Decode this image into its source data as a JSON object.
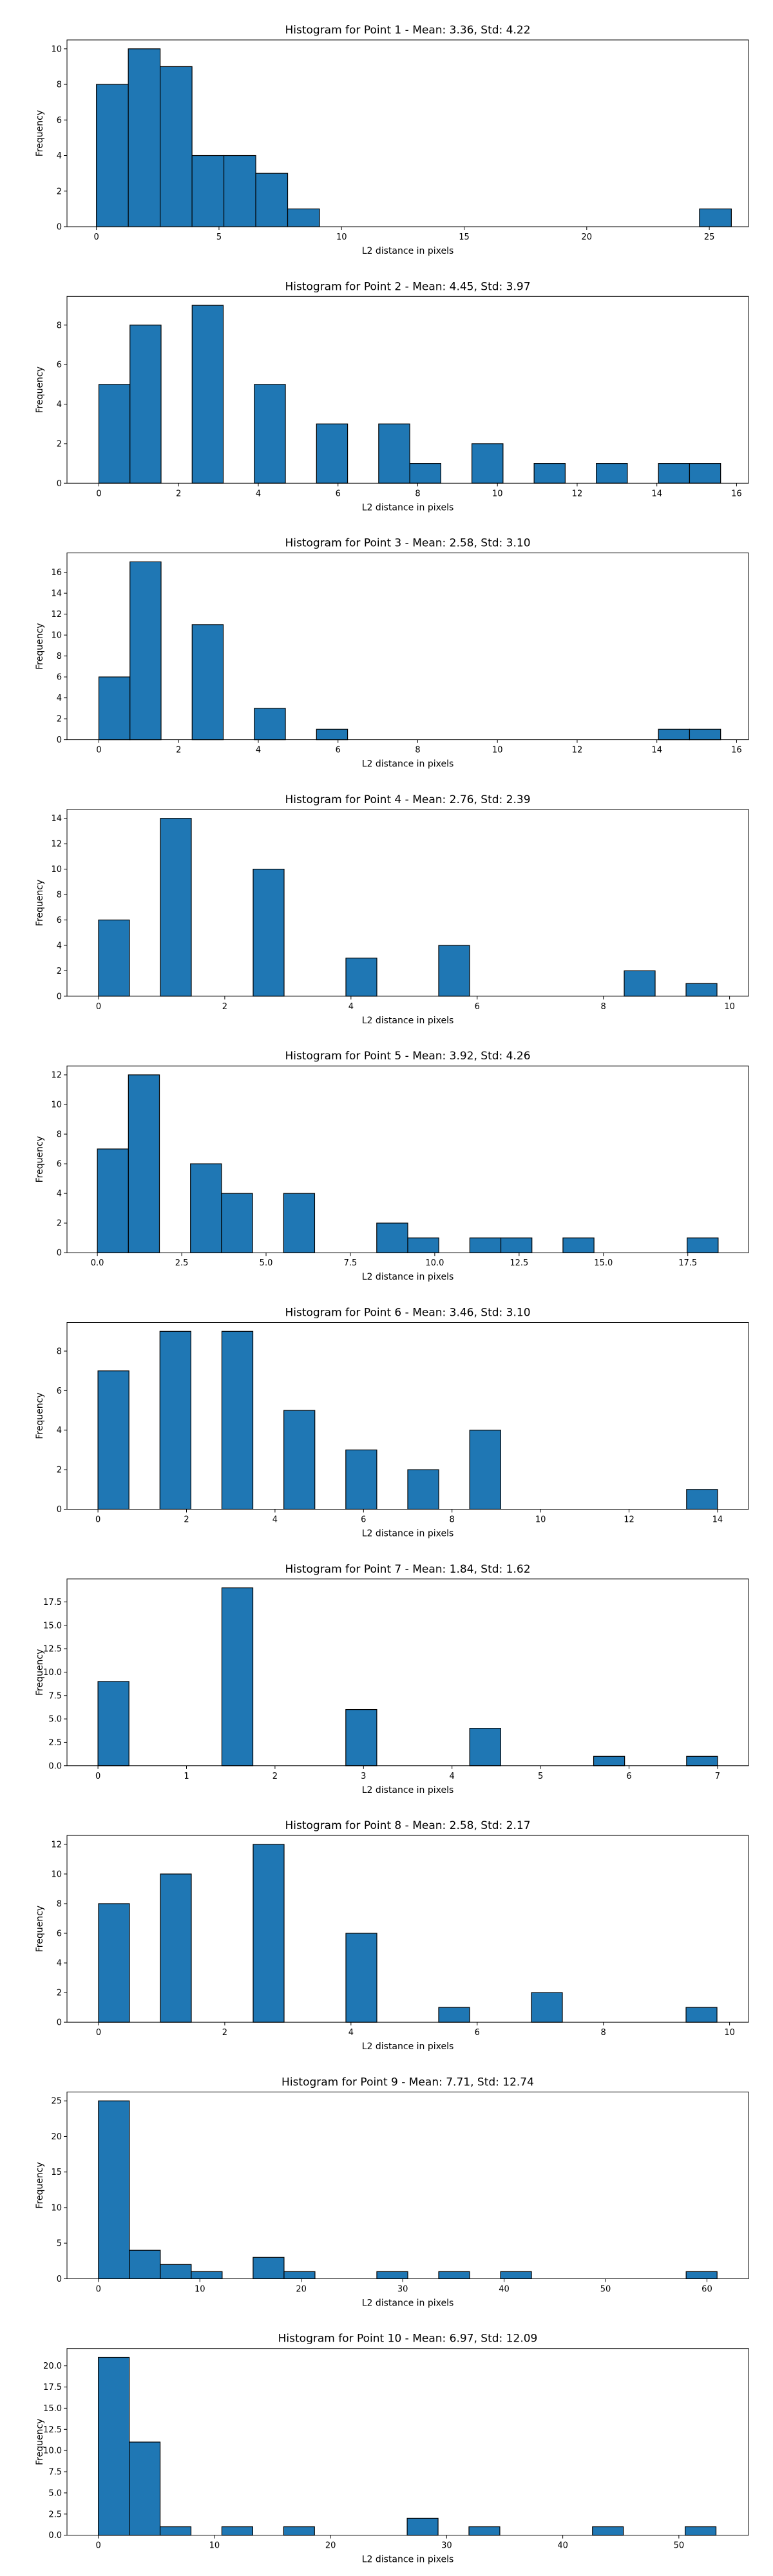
{
  "chart_data": [
    {
      "type": "bar",
      "title": "Histogram for Point 1 - Mean: 3.36, Std: 4.22",
      "xlabel": "L2 distance in pixels",
      "ylabel": "Frequency",
      "xlim": [
        -1.2,
        26.6
      ],
      "ylim": [
        0,
        10.5
      ],
      "xticks": [
        0,
        5,
        10,
        15,
        20,
        25
      ],
      "xtick_labels": [
        "0",
        "5",
        "10",
        "15",
        "20",
        "25"
      ],
      "yticks": [
        0,
        2,
        4,
        6,
        8,
        10
      ],
      "ytick_labels": [
        "0",
        "2",
        "4",
        "6",
        "8",
        "10"
      ],
      "bins": [
        {
          "x0": 0.0,
          "x1": 1.3,
          "value": 8
        },
        {
          "x0": 1.3,
          "x1": 2.6,
          "value": 10
        },
        {
          "x0": 2.6,
          "x1": 3.9,
          "value": 9
        },
        {
          "x0": 3.9,
          "x1": 5.2,
          "value": 4
        },
        {
          "x0": 5.2,
          "x1": 6.5,
          "value": 4
        },
        {
          "x0": 6.5,
          "x1": 7.8,
          "value": 3
        },
        {
          "x0": 7.8,
          "x1": 9.1,
          "value": 1
        },
        {
          "x0": 24.6,
          "x1": 25.9,
          "value": 1
        }
      ]
    },
    {
      "type": "bar",
      "title": "Histogram for Point 2 - Mean: 4.45, Std: 3.97",
      "xlabel": "L2 distance in pixels",
      "ylabel": "Frequency",
      "xlim": [
        -0.8,
        16.3
      ],
      "ylim": [
        0,
        9.45
      ],
      "xticks": [
        0,
        2,
        4,
        6,
        8,
        10,
        12,
        14,
        16
      ],
      "xtick_labels": [
        "0",
        "2",
        "4",
        "6",
        "8",
        "10",
        "12",
        "14",
        "16"
      ],
      "yticks": [
        0,
        2,
        4,
        6,
        8
      ],
      "ytick_labels": [
        "0",
        "2",
        "4",
        "6",
        "8"
      ],
      "bins": [
        {
          "x0": 0.0,
          "x1": 0.78,
          "value": 5
        },
        {
          "x0": 0.78,
          "x1": 1.56,
          "value": 8
        },
        {
          "x0": 2.34,
          "x1": 3.12,
          "value": 9
        },
        {
          "x0": 3.9,
          "x1": 4.68,
          "value": 5
        },
        {
          "x0": 5.46,
          "x1": 6.24,
          "value": 3
        },
        {
          "x0": 7.02,
          "x1": 7.8,
          "value": 3
        },
        {
          "x0": 7.8,
          "x1": 8.58,
          "value": 1
        },
        {
          "x0": 9.36,
          "x1": 10.14,
          "value": 2
        },
        {
          "x0": 10.92,
          "x1": 11.7,
          "value": 1
        },
        {
          "x0": 12.48,
          "x1": 13.26,
          "value": 1
        },
        {
          "x0": 14.04,
          "x1": 14.82,
          "value": 1
        },
        {
          "x0": 14.82,
          "x1": 15.6,
          "value": 1
        }
      ]
    },
    {
      "type": "bar",
      "title": "Histogram for Point 3 - Mean: 2.58, Std: 3.10",
      "xlabel": "L2 distance in pixels",
      "ylabel": "Frequency",
      "xlim": [
        -0.8,
        16.3
      ],
      "ylim": [
        0,
        17.85
      ],
      "xticks": [
        0,
        2,
        4,
        6,
        8,
        10,
        12,
        14,
        16
      ],
      "xtick_labels": [
        "0",
        "2",
        "4",
        "6",
        "8",
        "10",
        "12",
        "14",
        "16"
      ],
      "yticks": [
        0,
        2,
        4,
        6,
        8,
        10,
        12,
        14,
        16
      ],
      "ytick_labels": [
        "0",
        "2",
        "4",
        "6",
        "8",
        "10",
        "12",
        "14",
        "16"
      ],
      "bins": [
        {
          "x0": 0.0,
          "x1": 0.78,
          "value": 6
        },
        {
          "x0": 0.78,
          "x1": 1.56,
          "value": 17
        },
        {
          "x0": 2.34,
          "x1": 3.12,
          "value": 11
        },
        {
          "x0": 3.9,
          "x1": 4.68,
          "value": 3
        },
        {
          "x0": 5.46,
          "x1": 6.24,
          "value": 1
        },
        {
          "x0": 14.04,
          "x1": 14.82,
          "value": 1
        },
        {
          "x0": 14.82,
          "x1": 15.6,
          "value": 1
        }
      ]
    },
    {
      "type": "bar",
      "title": "Histogram for Point 4 - Mean: 2.76, Std: 2.39",
      "xlabel": "L2 distance in pixels",
      "ylabel": "Frequency",
      "xlim": [
        -0.5,
        10.3
      ],
      "ylim": [
        0,
        14.7
      ],
      "xticks": [
        0,
        2,
        4,
        6,
        8,
        10
      ],
      "xtick_labels": [
        "0",
        "2",
        "4",
        "6",
        "8",
        "10"
      ],
      "yticks": [
        0,
        2,
        4,
        6,
        8,
        10,
        12,
        14
      ],
      "ytick_labels": [
        "0",
        "2",
        "4",
        "6",
        "8",
        "10",
        "12",
        "14"
      ],
      "bins": [
        {
          "x0": 0.0,
          "x1": 0.49,
          "value": 6
        },
        {
          "x0": 0.98,
          "x1": 1.47,
          "value": 14
        },
        {
          "x0": 2.45,
          "x1": 2.94,
          "value": 10
        },
        {
          "x0": 3.92,
          "x1": 4.41,
          "value": 3
        },
        {
          "x0": 5.39,
          "x1": 5.88,
          "value": 4
        },
        {
          "x0": 8.33,
          "x1": 8.82,
          "value": 2
        },
        {
          "x0": 9.31,
          "x1": 9.8,
          "value": 1
        }
      ]
    },
    {
      "type": "bar",
      "title": "Histogram for Point 5 - Mean: 3.92, Std: 4.26",
      "xlabel": "L2 distance in pixels",
      "ylabel": "Frequency",
      "xlim": [
        -0.9,
        19.3
      ],
      "ylim": [
        0,
        12.6
      ],
      "xticks": [
        0,
        2.5,
        5,
        7.5,
        10,
        12.5,
        15,
        17.5
      ],
      "xtick_labels": [
        "0.0",
        "2.5",
        "5.0",
        "7.5",
        "10.0",
        "12.5",
        "15.0",
        "17.5"
      ],
      "yticks": [
        0,
        2,
        4,
        6,
        8,
        10,
        12
      ],
      "ytick_labels": [
        "0",
        "2",
        "4",
        "6",
        "8",
        "10",
        "12"
      ],
      "bins": [
        {
          "x0": 0.0,
          "x1": 0.92,
          "value": 7
        },
        {
          "x0": 0.92,
          "x1": 1.84,
          "value": 12
        },
        {
          "x0": 2.76,
          "x1": 3.68,
          "value": 6
        },
        {
          "x0": 3.68,
          "x1": 4.6,
          "value": 4
        },
        {
          "x0": 5.52,
          "x1": 6.44,
          "value": 4
        },
        {
          "x0": 8.28,
          "x1": 9.2,
          "value": 2
        },
        {
          "x0": 9.2,
          "x1": 10.12,
          "value": 1
        },
        {
          "x0": 11.04,
          "x1": 11.96,
          "value": 1
        },
        {
          "x0": 11.96,
          "x1": 12.88,
          "value": 1
        },
        {
          "x0": 13.8,
          "x1": 14.72,
          "value": 1
        },
        {
          "x0": 17.48,
          "x1": 18.4,
          "value": 1
        }
      ]
    },
    {
      "type": "bar",
      "title": "Histogram for Point 6 - Mean: 3.46, Std: 3.10",
      "xlabel": "L2 distance in pixels",
      "ylabel": "Frequency",
      "xlim": [
        -0.7,
        14.7
      ],
      "ylim": [
        0,
        9.45
      ],
      "xticks": [
        0,
        2,
        4,
        6,
        8,
        10,
        12,
        14
      ],
      "xtick_labels": [
        "0",
        "2",
        "4",
        "6",
        "8",
        "10",
        "12",
        "14"
      ],
      "yticks": [
        0,
        2,
        4,
        6,
        8
      ],
      "ytick_labels": [
        "0",
        "2",
        "4",
        "6",
        "8"
      ],
      "bins": [
        {
          "x0": 0.0,
          "x1": 0.7,
          "value": 7
        },
        {
          "x0": 1.4,
          "x1": 2.1,
          "value": 9
        },
        {
          "x0": 2.8,
          "x1": 3.5,
          "value": 9
        },
        {
          "x0": 4.2,
          "x1": 4.9,
          "value": 5
        },
        {
          "x0": 5.6,
          "x1": 6.3,
          "value": 3
        },
        {
          "x0": 7.0,
          "x1": 7.7,
          "value": 2
        },
        {
          "x0": 8.4,
          "x1": 9.1,
          "value": 4
        },
        {
          "x0": 13.3,
          "x1": 14.0,
          "value": 1
        }
      ]
    },
    {
      "type": "bar",
      "title": "Histogram for Point 7 - Mean: 1.84, Std: 1.62",
      "xlabel": "L2 distance in pixels",
      "ylabel": "Frequency",
      "xlim": [
        -0.35,
        7.35
      ],
      "ylim": [
        0,
        19.95
      ],
      "xticks": [
        0,
        1,
        2,
        3,
        4,
        5,
        6,
        7
      ],
      "xtick_labels": [
        "0",
        "1",
        "2",
        "3",
        "4",
        "5",
        "6",
        "7"
      ],
      "yticks": [
        0,
        2.5,
        5,
        7.5,
        10,
        12.5,
        15,
        17.5
      ],
      "ytick_labels": [
        "0.0",
        "2.5",
        "5.0",
        "7.5",
        "10.0",
        "12.5",
        "15.0",
        "17.5"
      ],
      "bins": [
        {
          "x0": 0.0,
          "x1": 0.35,
          "value": 9
        },
        {
          "x0": 1.4,
          "x1": 1.75,
          "value": 19
        },
        {
          "x0": 2.8,
          "x1": 3.15,
          "value": 6
        },
        {
          "x0": 4.2,
          "x1": 4.55,
          "value": 4
        },
        {
          "x0": 5.6,
          "x1": 5.95,
          "value": 1
        },
        {
          "x0": 6.65,
          "x1": 7.0,
          "value": 1
        }
      ]
    },
    {
      "type": "bar",
      "title": "Histogram for Point 8 - Mean: 2.58, Std: 2.17",
      "xlabel": "L2 distance in pixels",
      "ylabel": "Frequency",
      "xlim": [
        -0.5,
        10.3
      ],
      "ylim": [
        0,
        12.6
      ],
      "xticks": [
        0,
        2,
        4,
        6,
        8,
        10
      ],
      "xtick_labels": [
        "0",
        "2",
        "4",
        "6",
        "8",
        "10"
      ],
      "yticks": [
        0,
        2,
        4,
        6,
        8,
        10,
        12
      ],
      "ytick_labels": [
        "0",
        "2",
        "4",
        "6",
        "8",
        "10",
        "12"
      ],
      "bins": [
        {
          "x0": 0.0,
          "x1": 0.49,
          "value": 8
        },
        {
          "x0": 0.98,
          "x1": 1.47,
          "value": 10
        },
        {
          "x0": 2.45,
          "x1": 2.94,
          "value": 12
        },
        {
          "x0": 3.92,
          "x1": 4.41,
          "value": 6
        },
        {
          "x0": 5.39,
          "x1": 5.88,
          "value": 1
        },
        {
          "x0": 6.86,
          "x1": 7.35,
          "value": 2
        },
        {
          "x0": 9.31,
          "x1": 9.8,
          "value": 1
        }
      ]
    },
    {
      "type": "bar",
      "title": "Histogram for Point 9 - Mean: 7.71, Std: 12.74",
      "xlabel": "L2 distance in pixels",
      "ylabel": "Frequency",
      "xlim": [
        -3.1,
        64.1
      ],
      "ylim": [
        0,
        26.25
      ],
      "xticks": [
        0,
        10,
        20,
        30,
        40,
        50,
        60
      ],
      "xtick_labels": [
        "0",
        "10",
        "20",
        "30",
        "40",
        "50",
        "60"
      ],
      "yticks": [
        0,
        5,
        10,
        15,
        20,
        25
      ],
      "ytick_labels": [
        "0",
        "5",
        "10",
        "15",
        "20",
        "25"
      ],
      "bins": [
        {
          "x0": 0.0,
          "x1": 3.05,
          "value": 25
        },
        {
          "x0": 3.05,
          "x1": 6.1,
          "value": 4
        },
        {
          "x0": 6.1,
          "x1": 9.15,
          "value": 2
        },
        {
          "x0": 9.15,
          "x1": 12.2,
          "value": 1
        },
        {
          "x0": 15.25,
          "x1": 18.3,
          "value": 3
        },
        {
          "x0": 18.3,
          "x1": 21.35,
          "value": 1
        },
        {
          "x0": 27.45,
          "x1": 30.5,
          "value": 1
        },
        {
          "x0": 33.55,
          "x1": 36.6,
          "value": 1
        },
        {
          "x0": 39.65,
          "x1": 42.7,
          "value": 1
        },
        {
          "x0": 57.95,
          "x1": 61.0,
          "value": 1
        }
      ]
    },
    {
      "type": "bar",
      "title": "Histogram for Point 10 - Mean: 6.97, Std: 12.09",
      "xlabel": "L2 distance in pixels",
      "ylabel": "Frequency",
      "xlim": [
        -2.7,
        56.0
      ],
      "ylim": [
        0,
        22.05
      ],
      "xticks": [
        0,
        10,
        20,
        30,
        40,
        50
      ],
      "xtick_labels": [
        "0",
        "10",
        "20",
        "30",
        "40",
        "50"
      ],
      "yticks": [
        0,
        2.5,
        5,
        7.5,
        10,
        12.5,
        15,
        17.5,
        20
      ],
      "ytick_labels": [
        "0.0",
        "2.5",
        "5.0",
        "7.5",
        "10.0",
        "12.5",
        "15.0",
        "17.5",
        "20.0"
      ],
      "bins": [
        {
          "x0": 0.0,
          "x1": 2.66,
          "value": 21
        },
        {
          "x0": 2.66,
          "x1": 5.32,
          "value": 11
        },
        {
          "x0": 5.32,
          "x1": 7.98,
          "value": 1
        },
        {
          "x0": 10.64,
          "x1": 13.3,
          "value": 1
        },
        {
          "x0": 15.96,
          "x1": 18.62,
          "value": 1
        },
        {
          "x0": 26.6,
          "x1": 29.26,
          "value": 2
        },
        {
          "x0": 31.92,
          "x1": 34.58,
          "value": 1
        },
        {
          "x0": 42.56,
          "x1": 45.22,
          "value": 1
        },
        {
          "x0": 50.54,
          "x1": 53.2,
          "value": 1
        }
      ]
    }
  ]
}
